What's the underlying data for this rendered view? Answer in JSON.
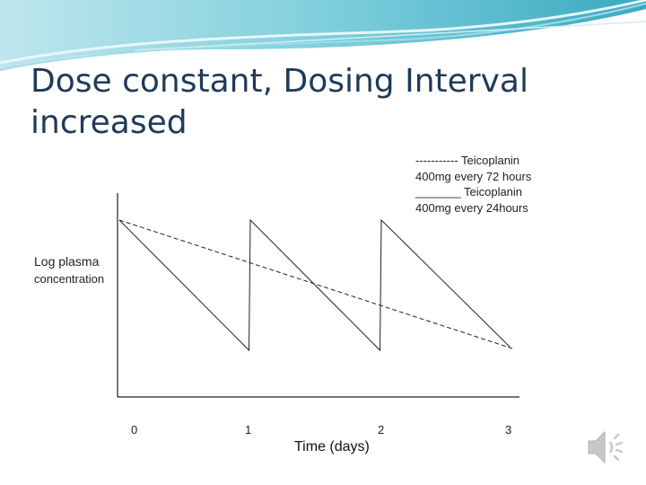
{
  "slide": {
    "title": "Dose constant, Dosing Interval increased"
  },
  "chart_data": {
    "type": "line",
    "title": "",
    "xlabel": "Time (days)",
    "ylabel": "Log plasma concentration",
    "ylabel_parts": [
      "Log plasma",
      "concentration"
    ],
    "x_ticks": [
      "0",
      "1",
      "2",
      "3"
    ],
    "xlim": [
      0,
      3.05
    ],
    "ylim": [
      0,
      1
    ],
    "legend": [
      "----------- Teicoplanin",
      "400mg   every 72 hours",
      "_______ Teicoplanin",
      "400mg   every 24hours"
    ],
    "legend_position": "top-right",
    "series": [
      {
        "name": "Teicoplanin 400mg every 72 hours",
        "style": "dashed",
        "x": [
          0,
          3
        ],
        "y": [
          1.0,
          0.27
        ]
      },
      {
        "name": "Teicoplanin 400mg every 24hours",
        "style": "solid",
        "x": [
          0,
          0.99,
          1.0,
          1.99,
          2.0,
          2.98
        ],
        "y": [
          1.0,
          0.26,
          1.0,
          0.26,
          1.0,
          0.28
        ]
      }
    ]
  },
  "icons": {
    "speaker": "speaker-icon"
  },
  "colors": {
    "title": "#1f3a5a",
    "header_teal": "#4fb6c9",
    "axis": "#222222"
  }
}
